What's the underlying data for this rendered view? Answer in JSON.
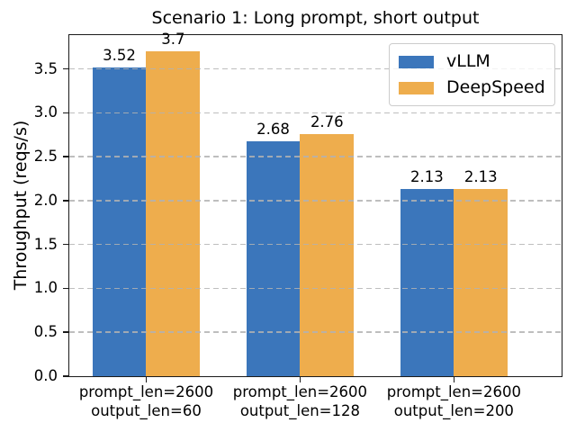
{
  "chart_data": {
    "type": "bar",
    "title": "Scenario 1: Long prompt, short output",
    "ylabel": "Throughput (reqs/s)",
    "xlabel": "",
    "categories": [
      [
        "prompt_len=2600",
        "output_len=60"
      ],
      [
        "prompt_len=2600",
        "output_len=128"
      ],
      [
        "prompt_len=2600",
        "output_len=200"
      ]
    ],
    "series": [
      {
        "name": "vLLM",
        "color": "#3b76bb",
        "values": [
          3.52,
          2.68,
          2.13
        ],
        "bar_labels": [
          "3.52",
          "2.68",
          "2.13"
        ]
      },
      {
        "name": "DeepSpeed",
        "color": "#eead4d",
        "values": [
          3.7,
          2.76,
          2.13
        ],
        "bar_labels": [
          "3.7",
          "2.76",
          "2.13"
        ]
      }
    ],
    "yticks": [
      0.0,
      0.5,
      1.0,
      1.5,
      2.0,
      2.5,
      3.0,
      3.5
    ],
    "ylim": [
      0,
      3.885
    ],
    "xlim": [
      -0.5,
      2.7
    ],
    "bar_width_units": 0.35,
    "grid": "horizontal dashed, drawn above bars",
    "grid_color": "#b0b0b0",
    "legend_position": "upper right",
    "legend_frame_alpha": 0.8,
    "spine_color": "#1a1a1a",
    "text_color": "#000000"
  }
}
